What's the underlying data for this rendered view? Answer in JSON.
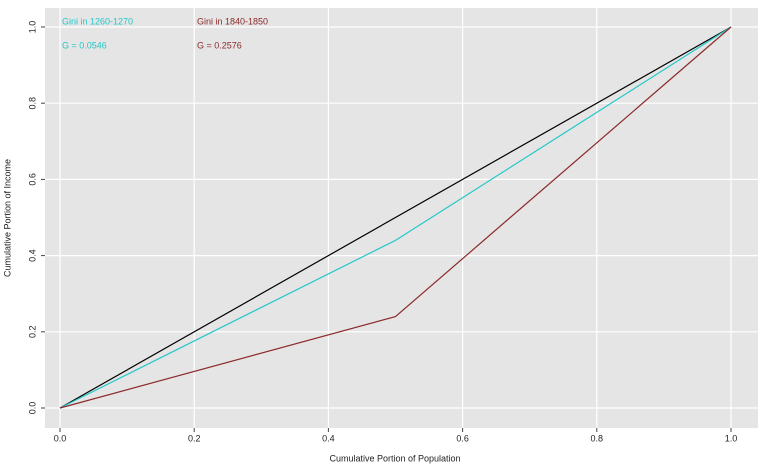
{
  "chart_data": {
    "type": "line",
    "xlabel": "Cumulative Portion of Population",
    "ylabel": "Cumulative Portion of Income",
    "xlim": [
      0,
      1
    ],
    "ylim": [
      0,
      1
    ],
    "xticks": [
      {
        "value": 0,
        "label": "0.0"
      },
      {
        "value": 0.2,
        "label": "0.2"
      },
      {
        "value": 0.4,
        "label": "0.4"
      },
      {
        "value": 0.6,
        "label": "0.6"
      },
      {
        "value": 0.8,
        "label": "0.8"
      },
      {
        "value": 1,
        "label": "1.0"
      }
    ],
    "yticks": [
      {
        "value": 0,
        "label": "0.0"
      },
      {
        "value": 0.2,
        "label": "0.2"
      },
      {
        "value": 0.4,
        "label": "0.4"
      },
      {
        "value": 0.6,
        "label": "0.6"
      },
      {
        "value": 0.8,
        "label": "0.8"
      },
      {
        "value": 1,
        "label": "1.0"
      }
    ],
    "grid": true,
    "series": [
      {
        "color": "#000000",
        "x": [
          0,
          1
        ],
        "values": [
          0,
          1
        ]
      },
      {
        "color": "#22c8c8",
        "x": [
          0,
          0.5,
          1
        ],
        "values": [
          0,
          0.44,
          1
        ]
      },
      {
        "color": "#8b2a2a",
        "x": [
          0,
          0.5,
          1
        ],
        "values": [
          0,
          0.24,
          1
        ]
      }
    ],
    "annotations": [
      {
        "text": "Gini in 1260-1270",
        "color": "#22c8c8"
      },
      {
        "text": "G = 0.0546",
        "color": "#22c8c8"
      },
      {
        "text": "Gini in 1840-1850",
        "color": "#8b2a2a"
      },
      {
        "text": "G = 0.2576",
        "color": "#8b2a2a"
      }
    ]
  }
}
